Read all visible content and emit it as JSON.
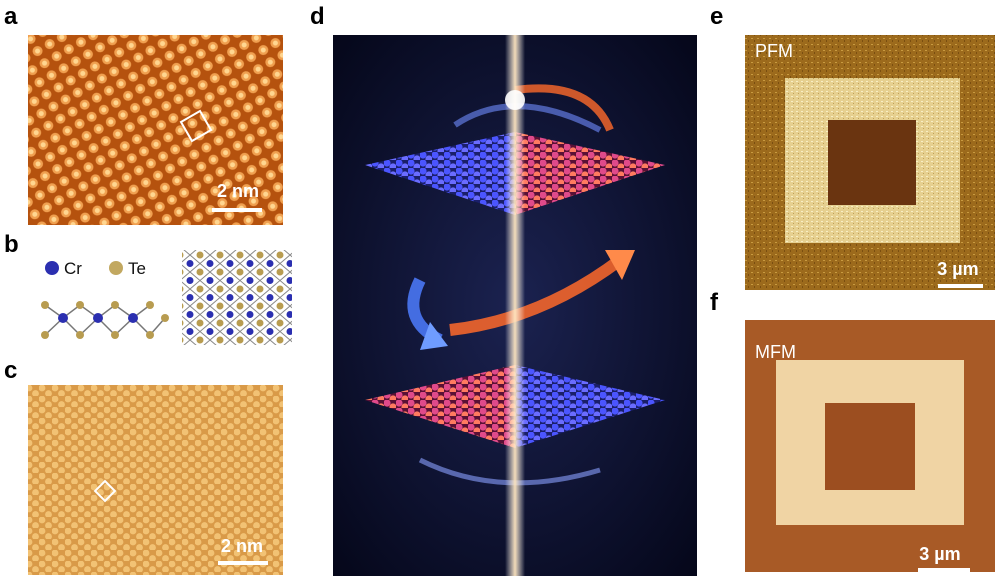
{
  "panels": [
    {
      "label": "a",
      "scale_bar": "2 nm"
    },
    {
      "label": "b",
      "legend": [
        "Cr",
        "Te"
      ]
    },
    {
      "label": "c",
      "scale_bar": "2 nm"
    },
    {
      "label": "d"
    },
    {
      "label": "e",
      "title": "PFM",
      "scale_bar": "3 µm"
    },
    {
      "label": "f",
      "title": "MFM",
      "scale_bar": "3 µm"
    }
  ]
}
